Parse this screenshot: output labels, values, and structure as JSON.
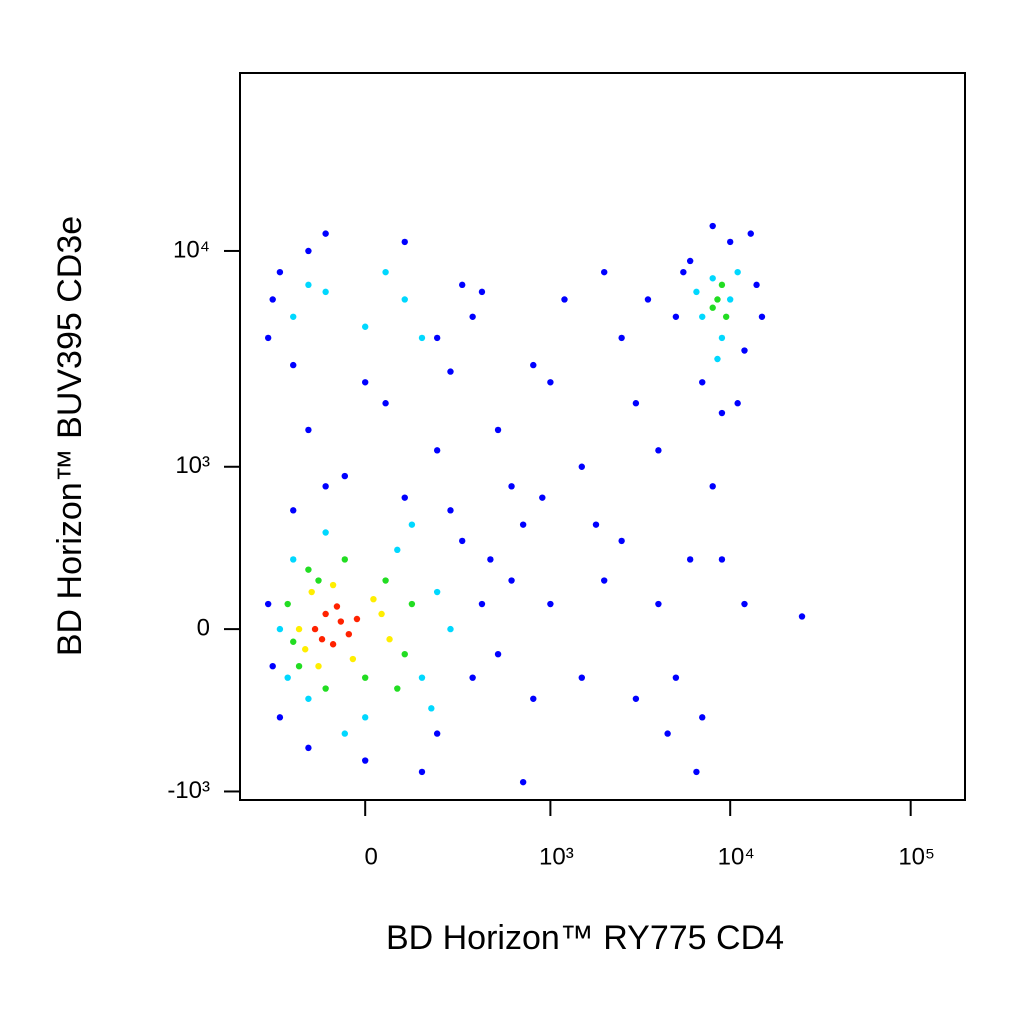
{
  "chart_data": {
    "type": "scatter",
    "scale": "biexponential",
    "x_label": "BD Horizon™ RY775 CD4",
    "y_label": "BD Horizon™ BUV395 CD3e",
    "xlim": [
      -450,
      200000
    ],
    "ylim": [
      -1100,
      65000
    ],
    "xticks": [
      0,
      {
        "value": 1000,
        "label": "10³"
      },
      {
        "value": 10000,
        "label": "10⁴"
      },
      {
        "value": 100000,
        "label": "10⁵"
      }
    ],
    "yticks": [
      {
        "value": -1000,
        "label": "-10³"
      },
      0,
      {
        "value": 1000,
        "label": "10³"
      },
      {
        "value": 10000,
        "label": "10⁴"
      }
    ],
    "series": [
      {
        "color": "#0000ff",
        "x": [
          -300,
          -250,
          -200,
          -150,
          -100,
          0,
          100,
          200,
          300,
          400,
          350,
          -280,
          250,
          150,
          -50,
          450,
          500,
          600,
          800,
          1000,
          1500,
          2000,
          3000,
          4000,
          5000,
          6000,
          7000,
          4500,
          2500,
          12000,
          25000,
          700,
          900,
          -300,
          -250,
          -200,
          -150,
          -100,
          0,
          100,
          200,
          300,
          350,
          250,
          -280,
          400,
          5000,
          6000,
          7000,
          8000,
          9000,
          10000,
          12000,
          14000,
          15000,
          5500,
          13000,
          11000,
          500,
          800,
          1200,
          2000,
          3000,
          1500,
          2500,
          600,
          1800,
          4000,
          -150,
          50,
          200,
          3500,
          1000,
          8000,
          9000,
          6500,
          700
        ],
        "y": [
          100,
          -400,
          600,
          -600,
          800,
          -700,
          700,
          -500,
          400,
          100,
          -200,
          -150,
          600,
          -800,
          900,
          300,
          -100,
          200,
          -300,
          100,
          -200,
          200,
          -300,
          100,
          -200,
          300,
          -400,
          -500,
          400,
          100,
          50,
          500,
          700,
          4000,
          8000,
          3000,
          10000,
          12000,
          2500,
          11000,
          4000,
          7000,
          5000,
          2800,
          6000,
          6500,
          5000,
          9000,
          2500,
          13000,
          1800,
          11000,
          3500,
          7000,
          5000,
          8000,
          12000,
          2000,
          1500,
          3000,
          6000,
          8000,
          2000,
          1000,
          4000,
          800,
          500,
          1200,
          1500,
          2000,
          1200,
          6000,
          2500,
          800,
          300,
          -800,
          -900
        ]
      },
      {
        "color": "#00d8ff",
        "x": [
          -250,
          -200,
          -150,
          -100,
          0,
          80,
          150,
          200,
          -220,
          120,
          180,
          -50,
          250,
          -200,
          -100,
          0,
          100,
          150,
          -150,
          50,
          7000,
          8000,
          9000,
          10000,
          11000,
          8500,
          6500
        ],
        "y": [
          0,
          300,
          -300,
          450,
          -400,
          350,
          -200,
          150,
          -200,
          500,
          -350,
          -500,
          0,
          5000,
          6500,
          4500,
          6000,
          4000,
          7000,
          8000,
          5000,
          7500,
          4000,
          6000,
          8000,
          3200,
          6500
        ]
      },
      {
        "color": "#22dd22",
        "x": [
          -220,
          -180,
          -150,
          -100,
          -50,
          0,
          50,
          100,
          120,
          -200,
          80,
          -120,
          8500,
          9500,
          9000,
          8000
        ],
        "y": [
          100,
          -150,
          250,
          -250,
          300,
          -200,
          200,
          -100,
          100,
          -50,
          -250,
          200,
          6000,
          5000,
          7000,
          5500
        ]
      },
      {
        "color": "#ffee00",
        "x": [
          -180,
          -140,
          -120,
          -80,
          -30,
          20,
          60,
          -160,
          40
        ],
        "y": [
          0,
          150,
          -150,
          180,
          -120,
          120,
          -40,
          -80,
          60
        ]
      },
      {
        "color": "#ff2200",
        "x": [
          -130,
          -100,
          -80,
          -60,
          -40,
          -110,
          -70,
          -20
        ],
        "y": [
          0,
          60,
          -60,
          30,
          -20,
          -40,
          90,
          40
        ]
      }
    ]
  }
}
